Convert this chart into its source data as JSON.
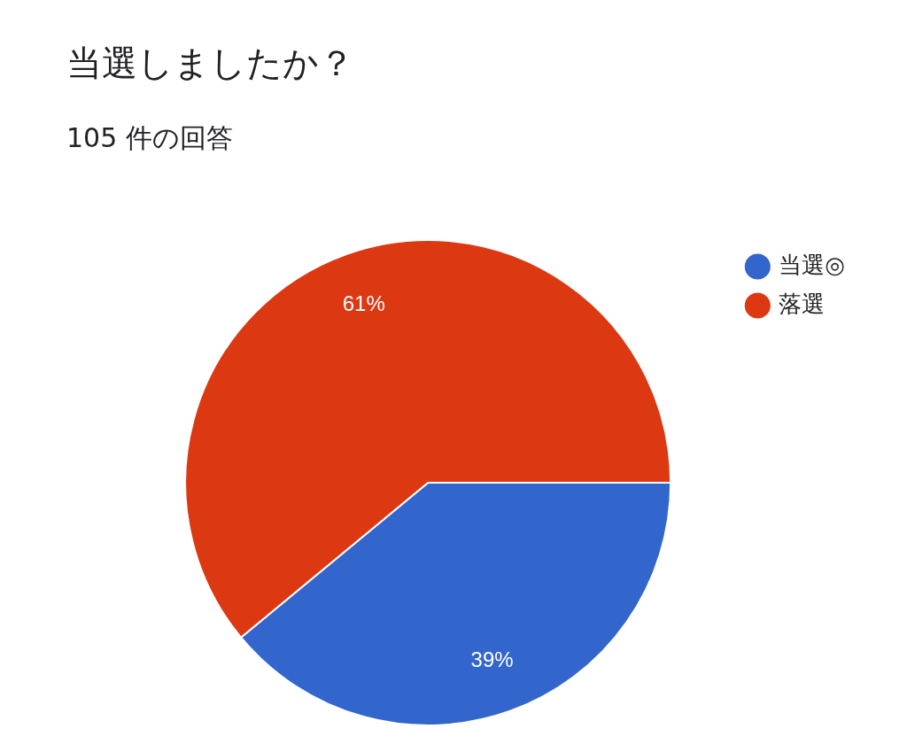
{
  "chart_data": {
    "type": "pie",
    "title": "当選しましたか？",
    "subtitle": "105 件の回答",
    "categories": [
      "当選◎",
      "落選"
    ],
    "values": [
      39,
      61
    ],
    "colors": [
      "#3366cc",
      "#dc3912"
    ],
    "value_labels": [
      "39%",
      "61%"
    ],
    "legend": "top right"
  }
}
